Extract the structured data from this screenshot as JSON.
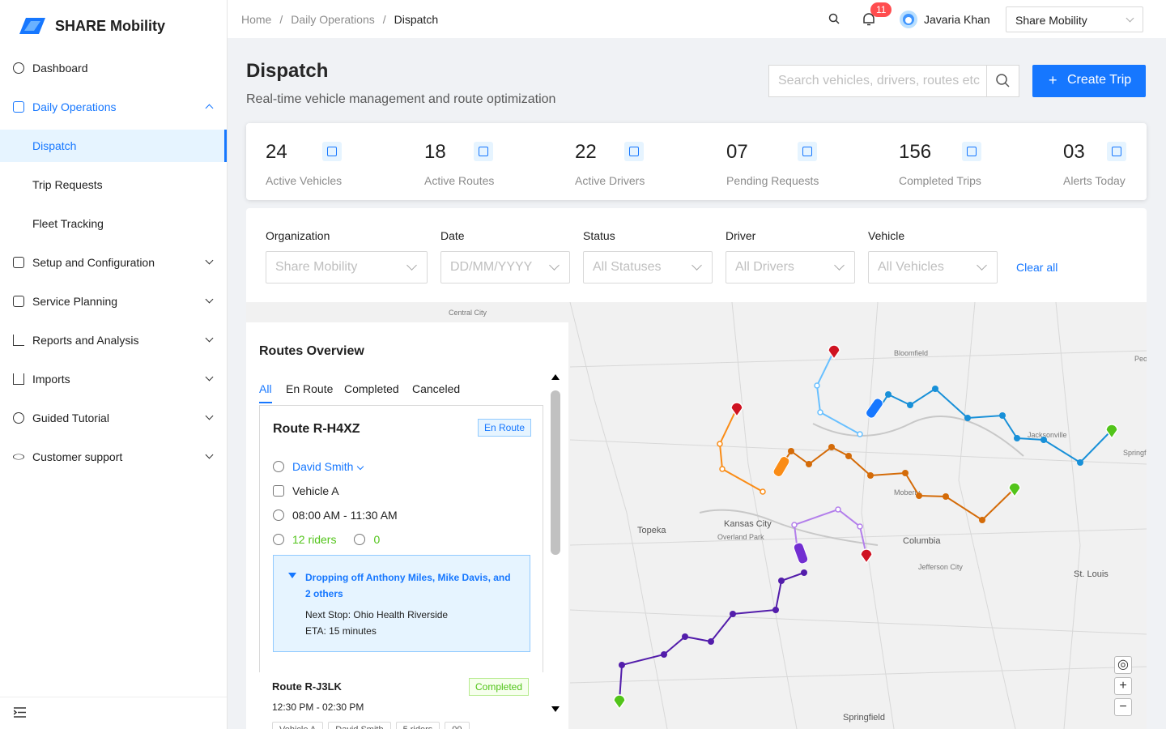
{
  "brand": "SHARE Mobility",
  "nav": {
    "dashboard": "Dashboard",
    "daily_operations": "Daily Operations",
    "daily_children": [
      "Dispatch",
      "Trip Requests",
      "Fleet Tracking"
    ],
    "sections": [
      "Setup and Configuration",
      "Service Planning",
      "Reports and Analysis",
      "Imports",
      "Guided Tutorial",
      "Customer support"
    ]
  },
  "header": {
    "breadcrumbs": [
      "Home",
      "Daily Operations",
      "Dispatch"
    ],
    "separator": "/",
    "notification_count": "11",
    "user": "Javaria Khan",
    "organization": "Share Mobility"
  },
  "page": {
    "title": "Dispatch",
    "subtitle": "Real-time vehicle management and route optimization",
    "search_placeholder": "Search vehicles, drivers, routes etc",
    "create_button": "Create Trip"
  },
  "stats": [
    {
      "value": "24",
      "label": "Active Vehicles"
    },
    {
      "value": "18",
      "label": "Active Routes"
    },
    {
      "value": "22",
      "label": "Active Drivers"
    },
    {
      "value": "07",
      "label": "Pending Requests"
    },
    {
      "value": "156",
      "label": "Completed Trips"
    },
    {
      "value": "03",
      "label": "Alerts Today"
    }
  ],
  "filters": [
    {
      "label": "Organization",
      "placeholder": "Share Mobility"
    },
    {
      "label": "Date",
      "placeholder": "DD/MM/YYYY"
    },
    {
      "label": "Status",
      "placeholder": "All Statuses"
    },
    {
      "label": "Driver",
      "placeholder": "All Drivers"
    },
    {
      "label": "Vehicle",
      "placeholder": "All Vehicles"
    }
  ],
  "clear_all": "Clear all",
  "routes_panel": {
    "title": "Routes Overview",
    "tabs": [
      "All",
      "En Route",
      "Completed",
      "Canceled"
    ],
    "routes": [
      {
        "name": "Route R-H4XZ",
        "status": "En Route",
        "driver": "David Smith",
        "vehicle": "Vehicle A",
        "time": "08:00 AM - 11:30 AM",
        "riders": "12 riders",
        "wheelchair": "0",
        "dropoff": "Dropping off Anthony Miles, Mike Davis, and 2 others",
        "next_stop": "Next Stop: Ohio Health Riverside",
        "eta": "ETA: 15 minutes"
      },
      {
        "name": "Route R-J3LK",
        "status": "Completed",
        "time": "12:30 PM - 02:30 PM",
        "chips": [
          "Vehicle A",
          "David Smith",
          "5 riders",
          "00"
        ]
      }
    ]
  },
  "map": {
    "labels": [
      "Kansas City",
      "Overland Park",
      "Topeka",
      "Columbia",
      "St. Louis",
      "Springfield",
      "Jacksonville",
      "Peoria",
      "Springfiel",
      "Central City",
      "Bloomfield",
      "Moberly",
      "Jefferson City"
    ]
  }
}
